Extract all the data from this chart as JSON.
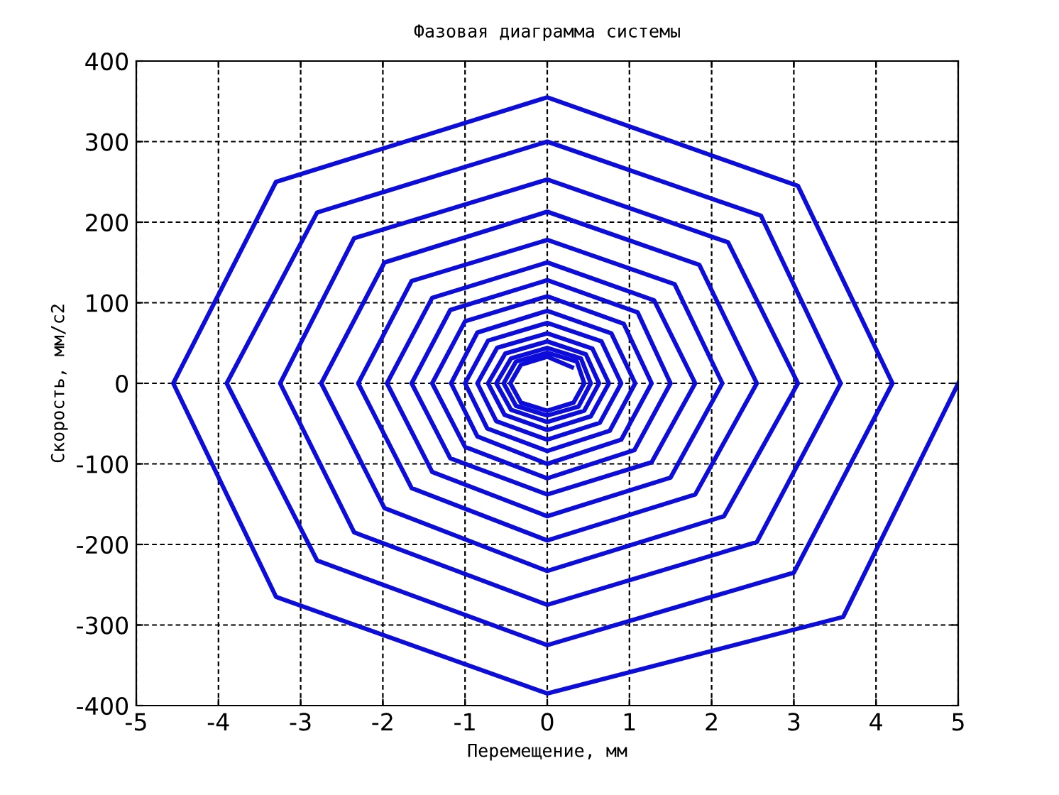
{
  "chart_data": {
    "type": "line",
    "title": "Фазовая диаграмма системы",
    "xlabel": "Перемещение, мм",
    "ylabel": "Скорость, мм/с2",
    "xlim": [
      -5,
      5
    ],
    "ylim": [
      -400,
      400
    ],
    "xticks": [
      -5,
      -4,
      -3,
      -2,
      -1,
      0,
      1,
      2,
      3,
      4,
      5
    ],
    "yticks": [
      -400,
      -300,
      -200,
      -100,
      0,
      100,
      200,
      300,
      400
    ],
    "grid": true,
    "marker": "none",
    "line_style": "solid",
    "series": [
      {
        "color": "#0d0ddb",
        "x": [
          5,
          3.6,
          0,
          -3.3,
          -4.55,
          -3.3,
          0,
          3.05,
          4.2,
          3.0,
          0,
          -2.8,
          -3.9,
          -2.8,
          0,
          2.6,
          3.57,
          2.55,
          0,
          -2.35,
          -3.25,
          -2.35,
          0,
          2.2,
          3.05,
          2.15,
          0,
          -1.98,
          -2.75,
          -1.98,
          0,
          1.85,
          2.55,
          1.8,
          0,
          -1.65,
          -2.3,
          -1.65,
          0,
          1.55,
          2.13,
          1.5,
          0,
          -1.4,
          -1.95,
          -1.4,
          0,
          1.3,
          1.8,
          1.27,
          0,
          -1.18,
          -1.65,
          -1.18,
          0,
          1.1,
          1.5,
          1.06,
          0,
          -1.0,
          -1.4,
          -1.0,
          0,
          0.93,
          1.27,
          0.9,
          0,
          -0.85,
          -1.17,
          -0.85,
          0,
          0.78,
          1.07,
          0.76,
          0,
          -0.73,
          -1.0,
          -0.72,
          0,
          0.66,
          0.9,
          0.64,
          0,
          -0.62,
          -0.85,
          -0.61,
          0,
          0.55,
          0.75,
          0.53,
          0,
          -0.52,
          -0.72,
          -0.51,
          0,
          0.47,
          0.63,
          0.45,
          0,
          -0.44,
          -0.62,
          -0.44,
          0,
          0.41,
          0.53,
          0.38,
          0,
          -0.38,
          -0.53,
          -0.38,
          0,
          0.36,
          0.45,
          0.32,
          0,
          -0.32,
          -0.45,
          -0.32,
          0,
          0.3
        ],
        "values": [
          0,
          -290,
          -385,
          -265,
          0,
          250,
          355,
          245,
          0,
          -235,
          -325,
          -220,
          0,
          212,
          300,
          208,
          0,
          -197,
          -275,
          -185,
          0,
          180,
          253,
          175,
          0,
          -165,
          -233,
          -155,
          0,
          150,
          213,
          147,
          0,
          -138,
          -195,
          -130,
          0,
          127,
          178,
          123,
          0,
          -117,
          -165,
          -110,
          0,
          106,
          150,
          103,
          0,
          -98,
          -138,
          -93,
          0,
          91,
          128,
          88,
          0,
          -83,
          -118,
          -79,
          0,
          77,
          108,
          74,
          0,
          -70,
          -100,
          -66,
          0,
          63,
          90,
          62,
          0,
          -59,
          -84,
          -56,
          0,
          53,
          75,
          52,
          0,
          -49,
          -70,
          -47,
          0,
          44,
          62,
          43,
          0,
          -41,
          -58,
          -39,
          0,
          37,
          52,
          36,
          0,
          -34,
          -48,
          -33,
          0,
          31,
          44,
          31,
          0,
          -29,
          -40,
          -28,
          0,
          27,
          38,
          27,
          0,
          -24,
          -34,
          -24,
          0,
          23,
          33,
          20
        ]
      }
    ]
  }
}
